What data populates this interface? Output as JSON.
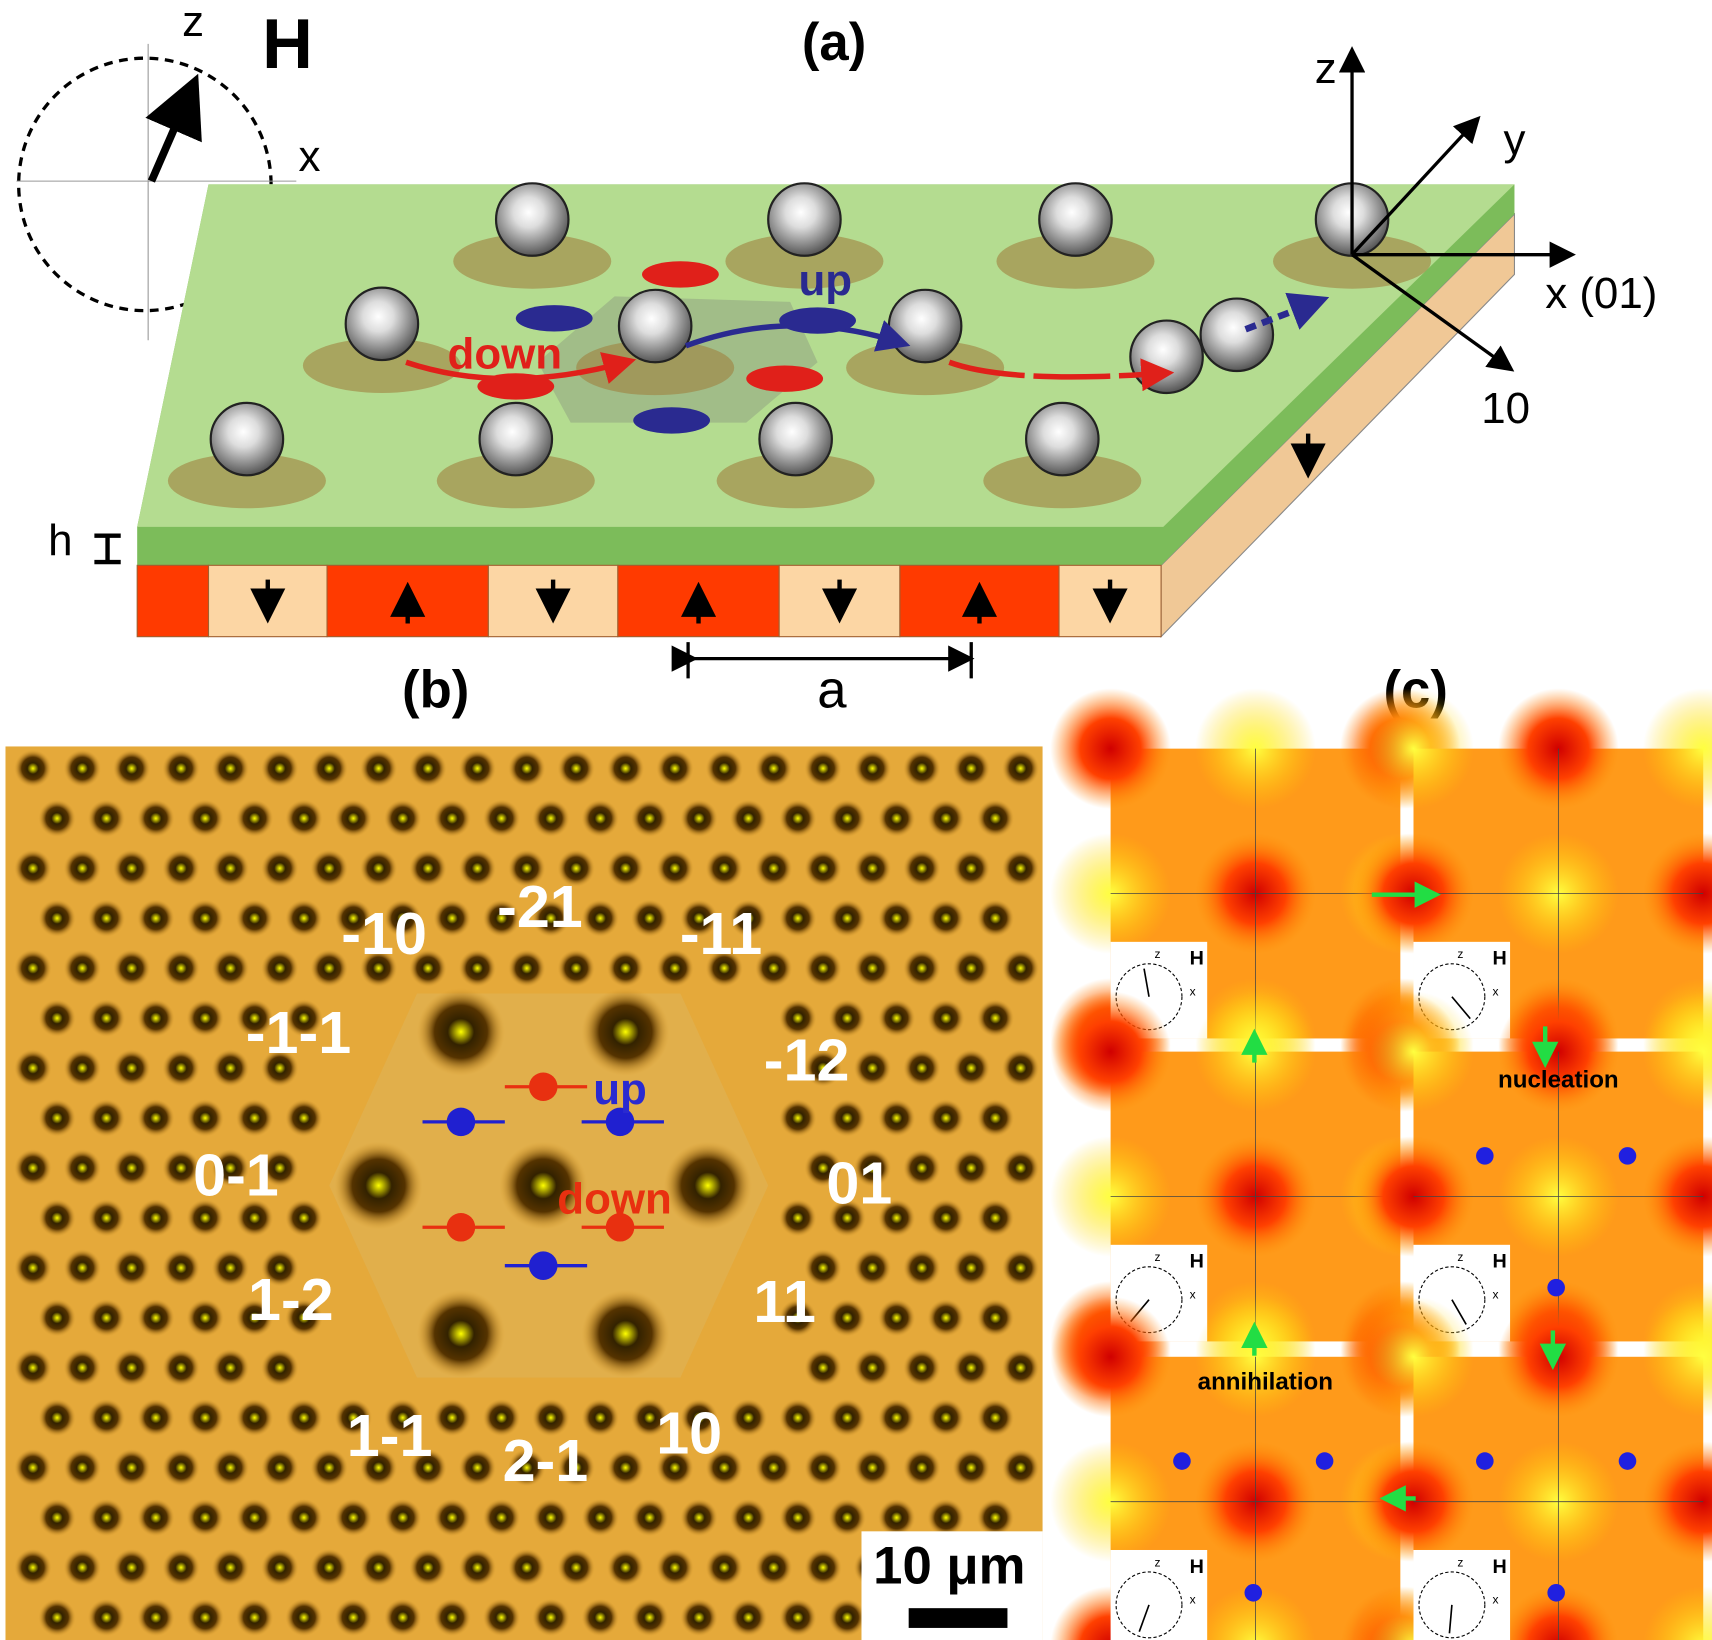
{
  "panel_a": {
    "label": "(a)",
    "field": {
      "z": "z",
      "x": "x",
      "H": "H"
    },
    "axes": {
      "z": "z",
      "y": "y",
      "x": "x (01)",
      "diag": "10"
    },
    "thickness": "h",
    "period": "a",
    "up": "up",
    "down": "down"
  },
  "panel_b": {
    "label": "(b)",
    "directions": [
      "-10",
      "-21",
      "-11",
      "-1-1",
      "-12",
      "0-1",
      "01",
      "1-2",
      "11",
      "1-1",
      "2-1",
      "10"
    ],
    "up": "up",
    "down": "down",
    "scale_bar": "10 μm"
  },
  "panel_c": {
    "label": "(c)",
    "frames": [
      {
        "z": "z",
        "H": "H",
        "x": "x"
      },
      {
        "z": "z",
        "H": "H",
        "x": "x"
      },
      {
        "z": "z",
        "H": "H",
        "x": "x"
      },
      {
        "z": "z",
        "H": "H",
        "x": "x"
      },
      {
        "z": "z",
        "H": "H",
        "x": "x"
      },
      {
        "z": "z",
        "H": "H",
        "x": "x"
      }
    ],
    "nucleation": "nucleation",
    "annihilation": "annihilation"
  }
}
